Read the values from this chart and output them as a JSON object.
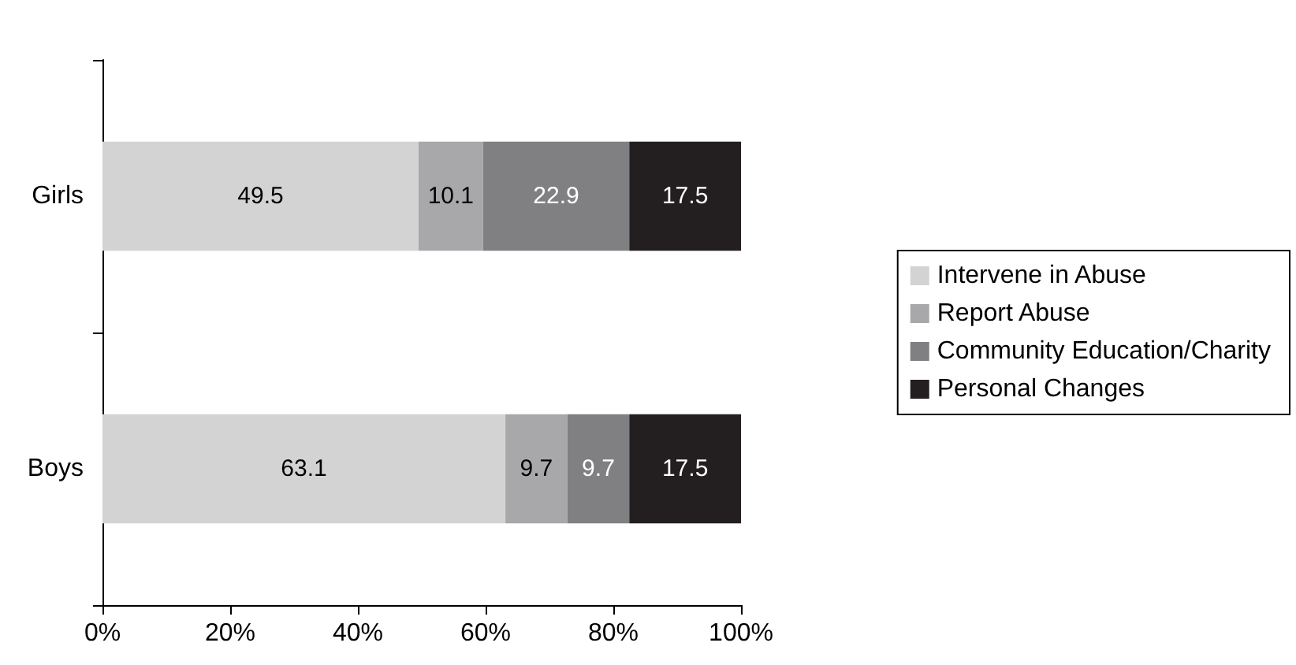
{
  "chart_data": {
    "type": "bar",
    "orientation": "horizontal",
    "stacked": true,
    "categories": [
      "Girls",
      "Boys"
    ],
    "series": [
      {
        "name": "Intervene in Abuse",
        "color": "#d3d3d3",
        "values": [
          49.5,
          63.1
        ]
      },
      {
        "name": "Report Abuse",
        "color": "#a8a8aa",
        "values": [
          10.1,
          9.7
        ]
      },
      {
        "name": "Community Education/Charity",
        "color": "#808083",
        "values": [
          22.9,
          9.7
        ]
      },
      {
        "name": "Personal Changes",
        "color": "#231f20",
        "values": [
          17.5,
          17.5
        ]
      }
    ],
    "xlim": [
      0,
      100
    ],
    "xticks": [
      {
        "value": 0,
        "label": "0%"
      },
      {
        "value": 20,
        "label": "20%"
      },
      {
        "value": 40,
        "label": "40%"
      },
      {
        "value": 60,
        "label": "60%"
      },
      {
        "value": 80,
        "label": "80%"
      },
      {
        "value": 100,
        "label": "100%"
      }
    ],
    "data_labels": true,
    "grid": false,
    "legend": "right"
  }
}
